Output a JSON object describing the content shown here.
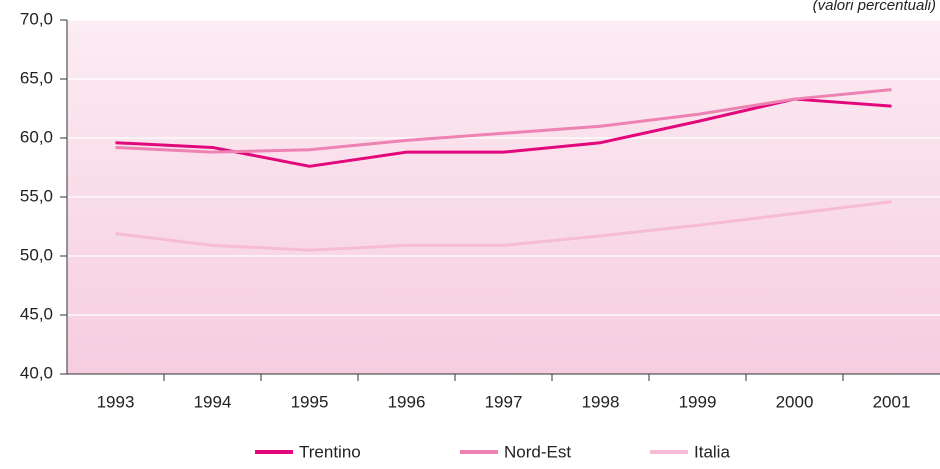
{
  "chart_data": {
    "type": "line",
    "subtitle": "(valori percentuali)",
    "categories": [
      "1993",
      "1994",
      "1995",
      "1996",
      "1997",
      "1998",
      "1999",
      "2000",
      "2001"
    ],
    "series": [
      {
        "name": "Trentino",
        "color": "#e2087c",
        "values": [
          59.6,
          59.2,
          57.6,
          58.8,
          58.8,
          59.6,
          61.4,
          63.3,
          62.7
        ]
      },
      {
        "name": "Nord-Est",
        "color": "#ee82b2",
        "values": [
          59.2,
          58.8,
          59.0,
          59.8,
          60.4,
          61.0,
          62.0,
          63.3,
          64.1
        ]
      },
      {
        "name": "Italia",
        "color": "#f6bcd6",
        "values": [
          51.9,
          50.9,
          50.5,
          50.9,
          50.9,
          51.7,
          52.6,
          53.6,
          54.6
        ]
      }
    ],
    "ylim": [
      40,
      70
    ],
    "yticks": [
      {
        "value": 40,
        "label": "40,0"
      },
      {
        "value": 45,
        "label": "45,0"
      },
      {
        "value": 50,
        "label": "50,0"
      },
      {
        "value": 55,
        "label": "55,0"
      },
      {
        "value": 60,
        "label": "60,0"
      },
      {
        "value": 65,
        "label": "65,0"
      },
      {
        "value": 70,
        "label": "70,0"
      }
    ],
    "grid": true
  }
}
